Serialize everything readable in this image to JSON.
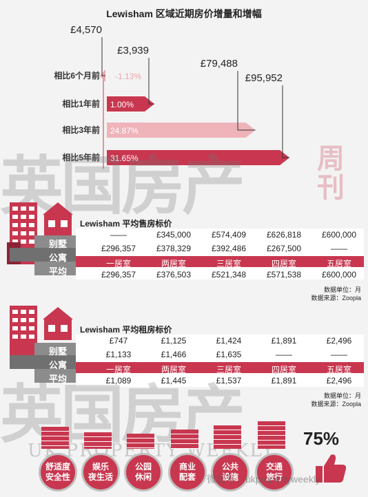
{
  "title": "Lewisham 区域近期房价增量和增幅",
  "chart_data": {
    "type": "bar",
    "orientation": "horizontal",
    "categories": [
      "相比6个月前",
      "相比1年前",
      "相比3年前",
      "相比5年前"
    ],
    "values_pct": [
      -1.13,
      1.0,
      24.87,
      31.65
    ],
    "value_labels": [
      "-1.13%",
      "1.00%",
      "24.87%",
      "31.65%"
    ],
    "amount_labels": [
      "£4,570",
      "£3,939",
      "£79,488",
      "£95,952"
    ],
    "colors": [
      "#e8a6ad",
      "#c8374f",
      "#efb3ba",
      "#c8374f"
    ]
  },
  "sale_table": {
    "title": "Lewisham 平均售房标价",
    "row_tags": [
      "别墅",
      "公寓",
      "平均"
    ],
    "detached": [
      "——",
      "£345,000",
      "£574,409",
      "£626,818",
      "£600,000"
    ],
    "flat": [
      "£296,357",
      "£378,329",
      "£392,486",
      "£267,500",
      "——"
    ],
    "bedrooms": [
      "一居室",
      "两居室",
      "三居室",
      "四居室",
      "五居室"
    ],
    "average": [
      "£296,357",
      "£376,503",
      "£521,348",
      "£571,538",
      "£600,000"
    ],
    "unit_note": "数据单位：月",
    "source_note": "数据来源：Zoopla"
  },
  "rent_table": {
    "title": "Lewisham 平均租房标价",
    "row_tags": [
      "别墅",
      "公寓",
      "平均"
    ],
    "detached": [
      "£747",
      "£1,125",
      "£1,424",
      "£1,891",
      "£2,496"
    ],
    "flat": [
      "£1,133",
      "£1,466",
      "£1,635",
      "——",
      "——"
    ],
    "bedrooms": [
      "一居室",
      "两居室",
      "三居室",
      "四居室",
      "五居室"
    ],
    "average": [
      "£1,089",
      "£1,445",
      "£1,537",
      "£1,891",
      "£2,496"
    ],
    "unit_note": "数据单位：月",
    "source_note": "数据来源：Zoopla"
  },
  "amenities": [
    {
      "line1": "舒适度",
      "line2": "安全性"
    },
    {
      "line1": "娱乐",
      "line2": "夜生活"
    },
    {
      "line1": "公园",
      "line2": "休闲"
    },
    {
      "line1": "商业",
      "line2": "配套"
    },
    {
      "line1": "公共",
      "line2": "设施"
    },
    {
      "line1": "交通",
      "line2": "旅行"
    }
  ],
  "score": "75%",
  "watermark": {
    "brand": "英国房产",
    "side": "周刊",
    "english": "UK PROPERTY WEEKLY",
    "wechat": "微信号：ukpropertyweekly"
  },
  "colors": {
    "accent": "#c8374f",
    "accent_light": "#efb3ba",
    "grey": "#8c8c8c"
  }
}
